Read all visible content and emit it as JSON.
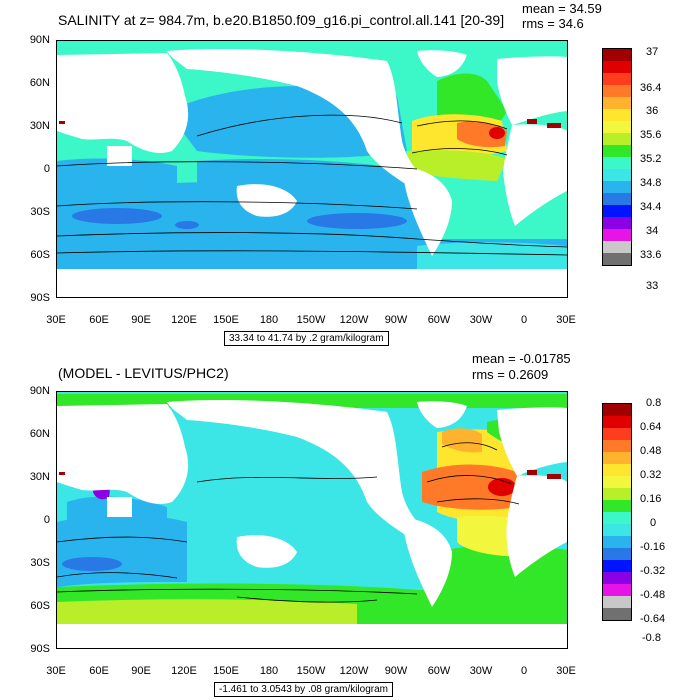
{
  "panels": [
    {
      "title": "SALINITY at z= 984.7m, b.e20.B1850.f09_g16.pi_control.all.141 [20-39]",
      "mean": "mean = 34.59",
      "rms": "rms = 34.6",
      "range_label": "33.34 to 41.74 by .2 gram/kilogram",
      "colorbar_labels": [
        "37",
        "36.4",
        "36",
        "35.6",
        "35.2",
        "34.8",
        "34.4",
        "34",
        "33.6",
        "33"
      ],
      "colorbar_colors": [
        "#a00000",
        "#e00000",
        "#ff3c1e",
        "#ff7a28",
        "#ffb22e",
        "#ffe62e",
        "#f2f63c",
        "#b8ef28",
        "#32e628",
        "#3cf7c8",
        "#3ce6e6",
        "#2ab4ee",
        "#2878e6",
        "#0014ff",
        "#8c00e6",
        "#e614e6",
        "#c8c8c8",
        "#707070"
      ]
    },
    {
      "title": "(MODEL - LEVITUS/PHC2)",
      "mean": "mean = -0.01785",
      "rms": "rms = 0.2609",
      "range_label": "-1.461 to 3.0543 by .08 gram/kilogram",
      "colorbar_labels": [
        "0.8",
        "0.64",
        "0.48",
        "0.32",
        "0.16",
        "0",
        "-0.16",
        "-0.32",
        "-0.48",
        "-0.64",
        "-0.8"
      ],
      "colorbar_colors": [
        "#a00000",
        "#e00000",
        "#ff3c1e",
        "#ff7a28",
        "#ffb22e",
        "#ffe62e",
        "#f2f63c",
        "#b8ef28",
        "#32e628",
        "#3cf7c8",
        "#3ce6e6",
        "#2ab4ee",
        "#2878e6",
        "#0014ff",
        "#8c00e6",
        "#e614e6",
        "#c8c8c8",
        "#707070"
      ]
    }
  ],
  "axes": {
    "lat_labels": [
      "90N",
      "60N",
      "30N",
      "0",
      "30S",
      "60S",
      "90S"
    ],
    "lon_labels": [
      "30E",
      "60E",
      "90E",
      "120E",
      "150E",
      "180",
      "150W",
      "120W",
      "90W",
      "60W",
      "30W",
      "0",
      "30E"
    ]
  }
}
